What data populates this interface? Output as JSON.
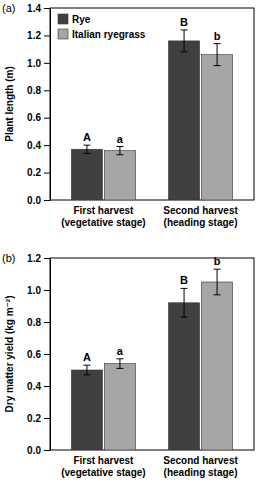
{
  "chart_data": [
    {
      "type": "bar",
      "title": "(a)",
      "y_label": "Plant length (m)",
      "categories": [
        "First harvest\n(vegetative stage)",
        "Second harvest\n(heading stage)"
      ],
      "series": [
        {
          "name": "Rye",
          "color": "#404040",
          "values": [
            0.37,
            1.16
          ],
          "errors": [
            0.03,
            0.08
          ],
          "annotations": [
            "A",
            "B"
          ]
        },
        {
          "name": "Italian ryegrass",
          "color": "#a6a6a6",
          "values": [
            0.36,
            1.06
          ],
          "errors": [
            0.03,
            0.08
          ],
          "annotations": [
            "a",
            "b"
          ]
        }
      ],
      "ylim": [
        0,
        1.4
      ],
      "yticks": [
        {
          "value": 0,
          "label": "0.0"
        },
        0.2,
        0.4,
        0.6,
        0.8,
        {
          "value": 1,
          "label": "1.0"
        },
        1.2,
        1.4
      ],
      "legend": "top-left"
    },
    {
      "type": "bar",
      "title": "(b)",
      "y_label": "Dry matter yield (kg m⁻²)",
      "categories": [
        "First harvest\n(vegetative stage)",
        "Second harvest\n(heading stage)"
      ],
      "series": [
        {
          "name": "Rye",
          "color": "#404040",
          "values": [
            0.5,
            0.92
          ],
          "errors": [
            0.03,
            0.09
          ],
          "annotations": [
            "A",
            "B"
          ]
        },
        {
          "name": "Italian ryegrass",
          "color": "#a6a6a6",
          "values": [
            0.54,
            1.05
          ],
          "errors": [
            0.03,
            0.08
          ],
          "annotations": [
            "a",
            "b"
          ]
        }
      ],
      "ylim": [
        0,
        1.2
      ],
      "yticks": [
        {
          "value": 0,
          "label": "0.0"
        },
        0.2,
        0.4,
        0.6,
        0.8,
        {
          "value": 1,
          "label": "1.0"
        },
        1.2
      ],
      "legend": false
    }
  ]
}
